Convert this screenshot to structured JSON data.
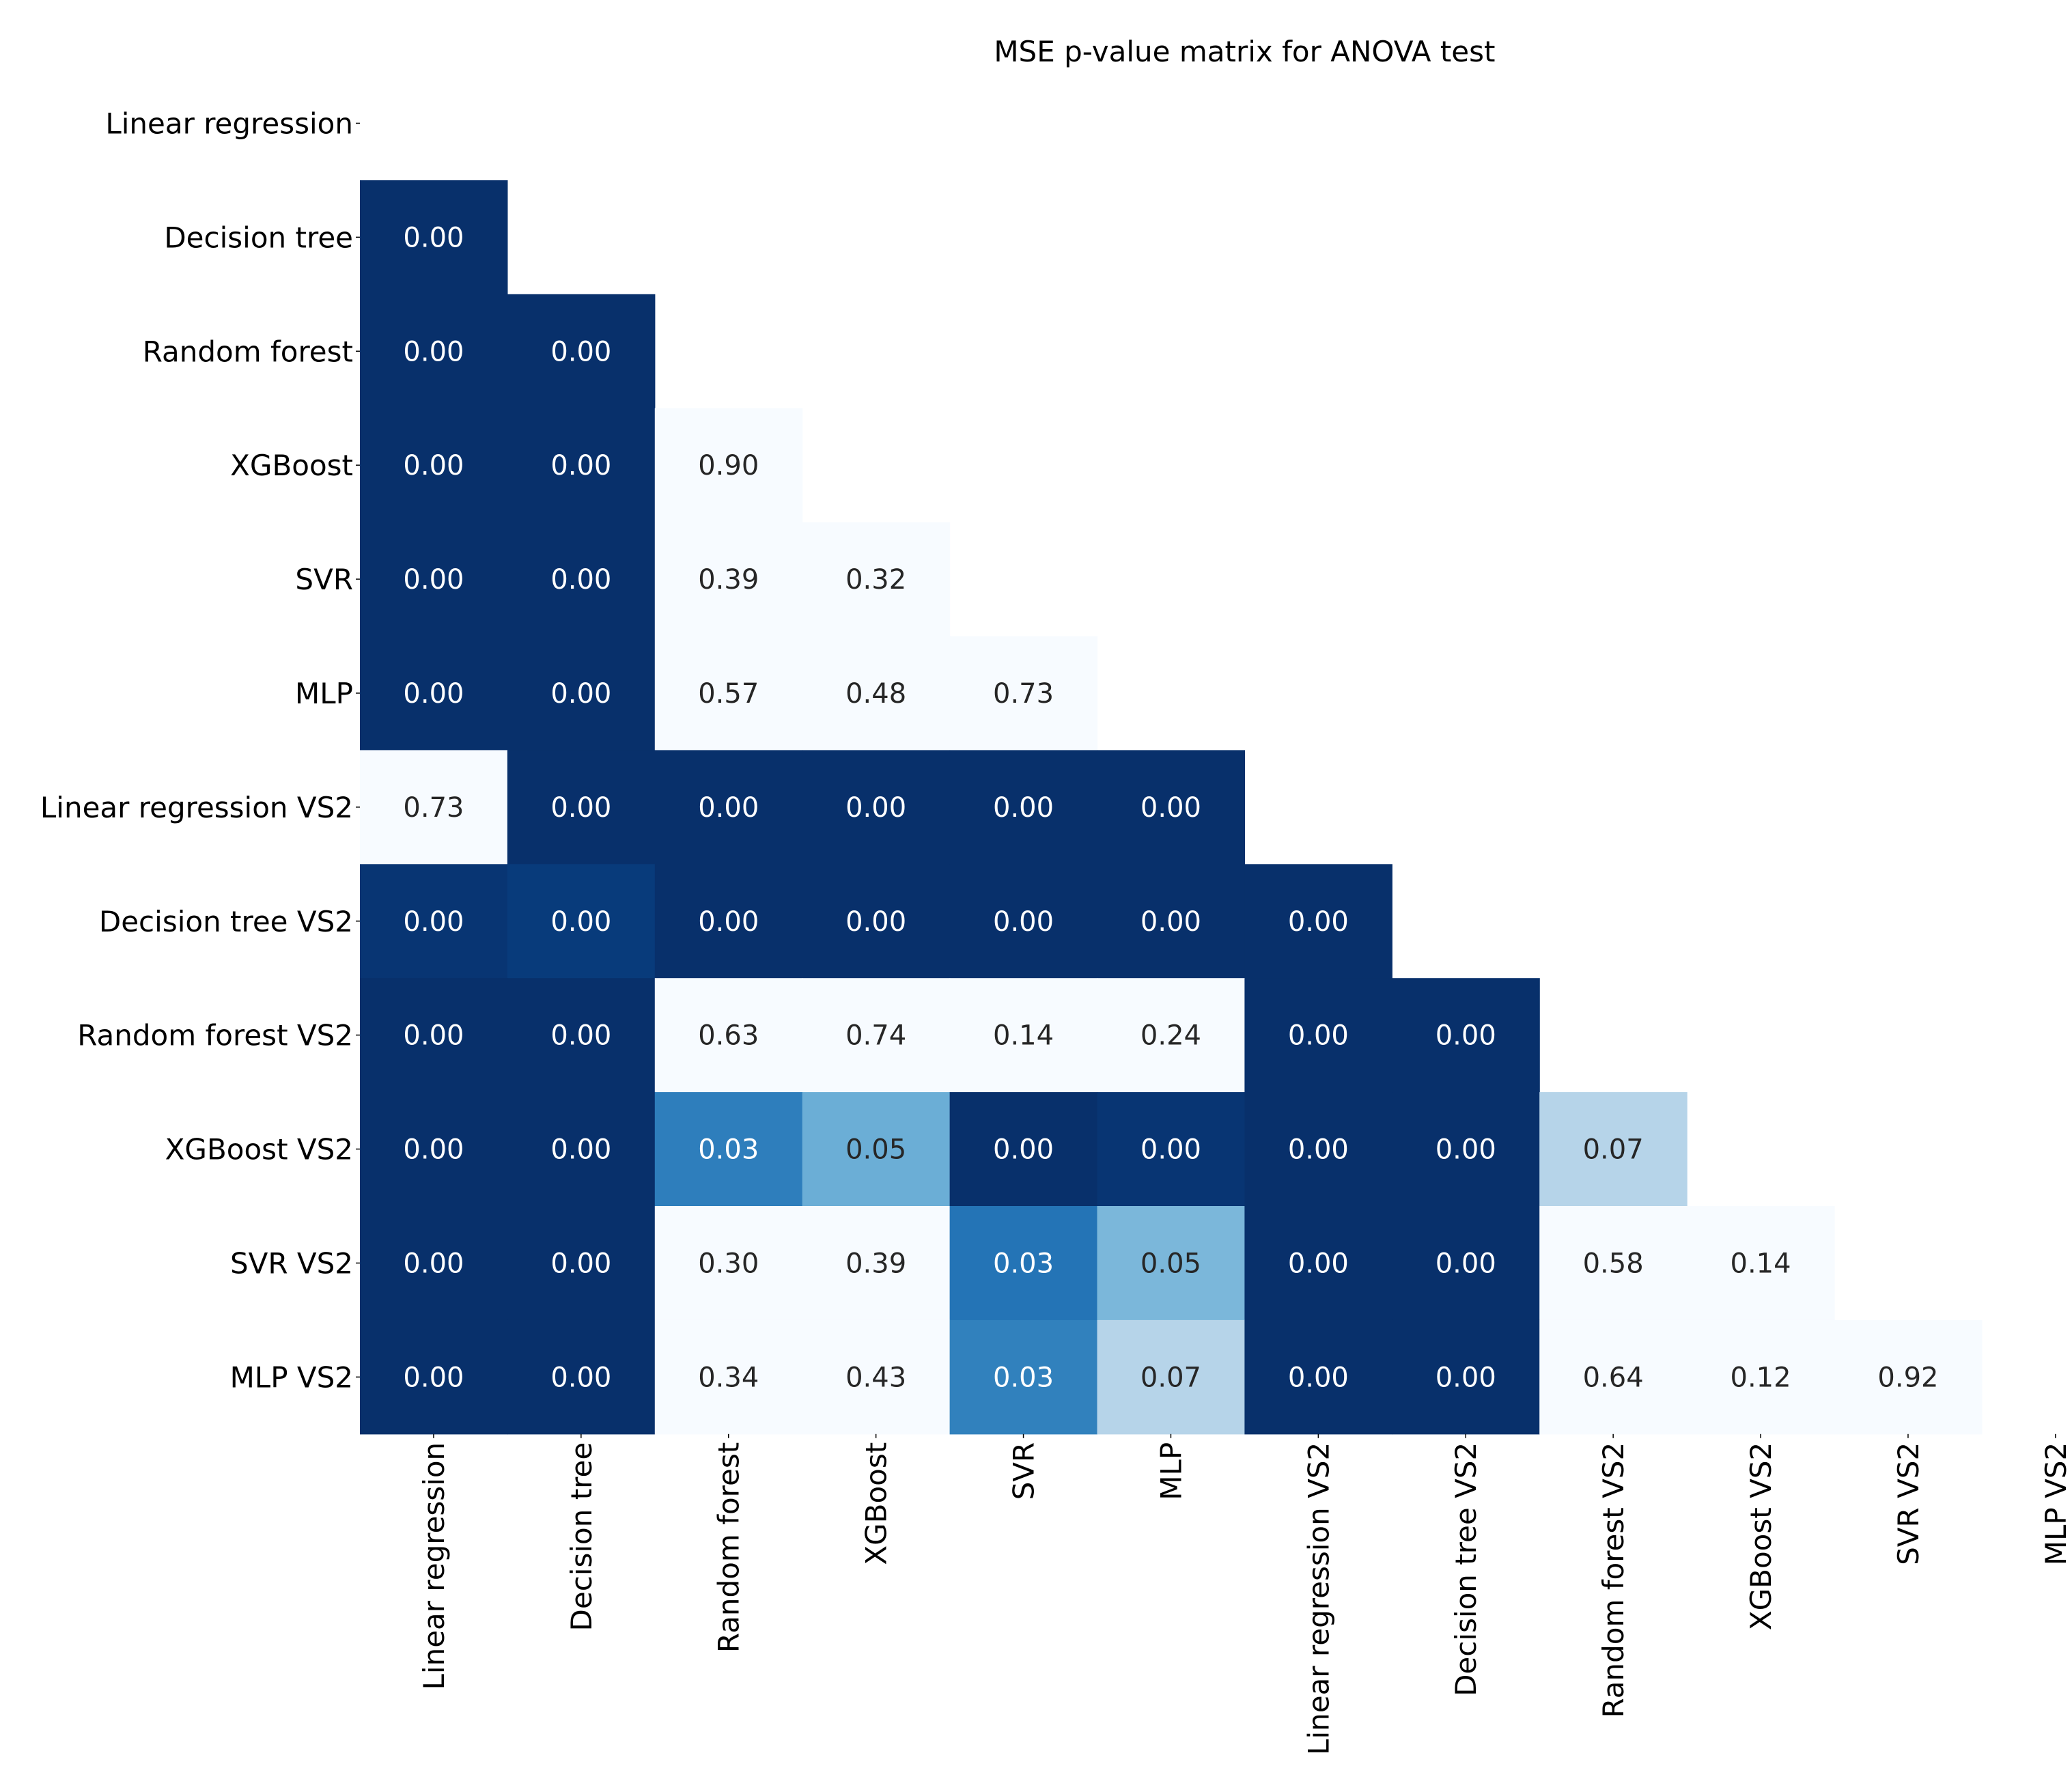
{
  "chart_data": {
    "type": "heatmap",
    "title": "MSE p-value matrix for ANOVA test",
    "labels": [
      "Linear regression",
      "Decision tree",
      "Random forest",
      "XGBoost",
      "SVR",
      "MLP",
      "Linear regression VS2",
      "Decision tree VS2",
      "Random forest VS2",
      "XGBoost VS2",
      "SVR VS2",
      "MLP VS2"
    ],
    "mask": "upper-triangle-including-diagonal",
    "colormap": "Blues_r",
    "value_format": "2-decimals",
    "cells": [
      {
        "row": 1,
        "col": 0,
        "value": 0.0
      },
      {
        "row": 2,
        "col": 0,
        "value": 0.0
      },
      {
        "row": 2,
        "col": 1,
        "value": 0.0
      },
      {
        "row": 3,
        "col": 0,
        "value": 0.0
      },
      {
        "row": 3,
        "col": 1,
        "value": 0.0
      },
      {
        "row": 3,
        "col": 2,
        "value": 0.9
      },
      {
        "row": 4,
        "col": 0,
        "value": 0.0
      },
      {
        "row": 4,
        "col": 1,
        "value": 0.0
      },
      {
        "row": 4,
        "col": 2,
        "value": 0.39
      },
      {
        "row": 4,
        "col": 3,
        "value": 0.32
      },
      {
        "row": 5,
        "col": 0,
        "value": 0.0
      },
      {
        "row": 5,
        "col": 1,
        "value": 0.0
      },
      {
        "row": 5,
        "col": 2,
        "value": 0.57
      },
      {
        "row": 5,
        "col": 3,
        "value": 0.48
      },
      {
        "row": 5,
        "col": 4,
        "value": 0.73
      },
      {
        "row": 6,
        "col": 0,
        "value": 0.73
      },
      {
        "row": 6,
        "col": 1,
        "value": 0.0
      },
      {
        "row": 6,
        "col": 2,
        "value": 0.0
      },
      {
        "row": 6,
        "col": 3,
        "value": 0.0
      },
      {
        "row": 6,
        "col": 4,
        "value": 0.0
      },
      {
        "row": 6,
        "col": 5,
        "value": 0.0
      },
      {
        "row": 7,
        "col": 0,
        "value": 0.002
      },
      {
        "row": 7,
        "col": 1,
        "value": 0.004
      },
      {
        "row": 7,
        "col": 2,
        "value": 0.0
      },
      {
        "row": 7,
        "col": 3,
        "value": 0.0
      },
      {
        "row": 7,
        "col": 4,
        "value": 0.0
      },
      {
        "row": 7,
        "col": 5,
        "value": 0.0
      },
      {
        "row": 7,
        "col": 6,
        "value": 0.0
      },
      {
        "row": 8,
        "col": 0,
        "value": 0.0
      },
      {
        "row": 8,
        "col": 1,
        "value": 0.0
      },
      {
        "row": 8,
        "col": 2,
        "value": 0.63
      },
      {
        "row": 8,
        "col": 3,
        "value": 0.74
      },
      {
        "row": 8,
        "col": 4,
        "value": 0.14
      },
      {
        "row": 8,
        "col": 5,
        "value": 0.24
      },
      {
        "row": 8,
        "col": 6,
        "value": 0.0
      },
      {
        "row": 8,
        "col": 7,
        "value": 0.0
      },
      {
        "row": 9,
        "col": 0,
        "value": 0.0
      },
      {
        "row": 9,
        "col": 1,
        "value": 0.0
      },
      {
        "row": 9,
        "col": 2,
        "value": 0.03
      },
      {
        "row": 9,
        "col": 3,
        "value": 0.05
      },
      {
        "row": 9,
        "col": 4,
        "value": 0.0
      },
      {
        "row": 9,
        "col": 5,
        "value": 0.002
      },
      {
        "row": 9,
        "col": 6,
        "value": 0.0
      },
      {
        "row": 9,
        "col": 7,
        "value": 0.0
      },
      {
        "row": 9,
        "col": 8,
        "value": 0.07
      },
      {
        "row": 10,
        "col": 0,
        "value": 0.0
      },
      {
        "row": 10,
        "col": 1,
        "value": 0.0
      },
      {
        "row": 10,
        "col": 2,
        "value": 0.3
      },
      {
        "row": 10,
        "col": 3,
        "value": 0.39
      },
      {
        "row": 10,
        "col": 4,
        "value": 0.026
      },
      {
        "row": 10,
        "col": 5,
        "value": 0.054
      },
      {
        "row": 10,
        "col": 6,
        "value": 0.0
      },
      {
        "row": 10,
        "col": 7,
        "value": 0.0
      },
      {
        "row": 10,
        "col": 8,
        "value": 0.58
      },
      {
        "row": 10,
        "col": 9,
        "value": 0.14
      },
      {
        "row": 11,
        "col": 0,
        "value": 0.0
      },
      {
        "row": 11,
        "col": 1,
        "value": 0.0
      },
      {
        "row": 11,
        "col": 2,
        "value": 0.34
      },
      {
        "row": 11,
        "col": 3,
        "value": 0.43
      },
      {
        "row": 11,
        "col": 4,
        "value": 0.031
      },
      {
        "row": 11,
        "col": 5,
        "value": 0.07
      },
      {
        "row": 11,
        "col": 6,
        "value": 0.0
      },
      {
        "row": 11,
        "col": 7,
        "value": 0.0
      },
      {
        "row": 11,
        "col": 8,
        "value": 0.64
      },
      {
        "row": 11,
        "col": 9,
        "value": 0.12
      },
      {
        "row": 11,
        "col": 10,
        "value": 0.92
      }
    ]
  }
}
